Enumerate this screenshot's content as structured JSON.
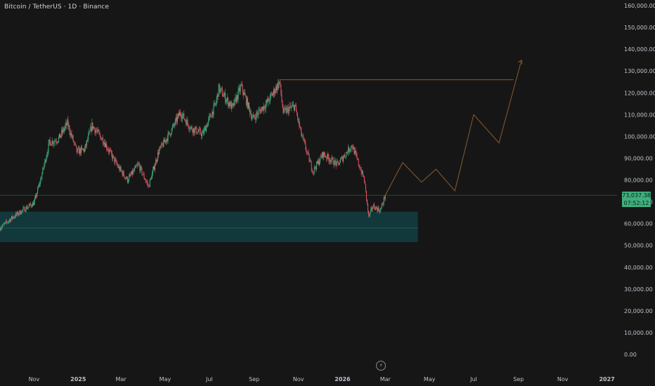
{
  "header": {
    "symbol": "Bitcoin / TetherUS · 1D · Binance"
  },
  "last_price": {
    "price": "73,037.38",
    "countdown": "07:52:12"
  },
  "colors": {
    "background": "#161616",
    "up": "#3fae7e",
    "down": "#e05562",
    "zone_fill": "#123a3d",
    "forecast_line": "#8a5a2e",
    "resistance_line": "#8a5a2e",
    "price_line": "#3fae7e"
  },
  "chart_data": {
    "type": "candlestick",
    "title": "",
    "xlabel": "",
    "ylabel": "",
    "ylim": [
      0,
      160000
    ],
    "yticks": [
      "0.00",
      "10,000.00",
      "20,000.00",
      "30,000.00",
      "40,000.00",
      "50,000.00",
      "60,000.00",
      "70,000.00",
      "80,000.00",
      "90,000.00",
      "100,000.00",
      "110,000.00",
      "120,000.00",
      "130,000.00",
      "140,000.00",
      "150,000.00",
      "160,000.00"
    ],
    "xticks": [
      {
        "label": "Nov",
        "date": "2024-11-01",
        "bold": false
      },
      {
        "label": "2025",
        "date": "2025-01-01",
        "bold": true
      },
      {
        "label": "Mar",
        "date": "2025-03-01",
        "bold": false
      },
      {
        "label": "May",
        "date": "2025-05-01",
        "bold": false
      },
      {
        "label": "Jul",
        "date": "2025-07-01",
        "bold": false
      },
      {
        "label": "Sep",
        "date": "2025-09-01",
        "bold": false
      },
      {
        "label": "Nov",
        "date": "2025-11-01",
        "bold": false
      },
      {
        "label": "2026",
        "date": "2026-01-01",
        "bold": true
      },
      {
        "label": "Mar",
        "date": "2026-03-01",
        "bold": false
      },
      {
        "label": "May",
        "date": "2026-05-01",
        "bold": false
      },
      {
        "label": "Jul",
        "date": "2026-07-01",
        "bold": false
      },
      {
        "label": "Sep",
        "date": "2026-09-01",
        "bold": false
      },
      {
        "label": "Nov",
        "date": "2026-11-01",
        "bold": false
      },
      {
        "label": "2027",
        "date": "2027-01-01",
        "bold": true
      }
    ],
    "x_start": "2024-09-15",
    "price_path": [
      [
        "2024-09-15",
        58000
      ],
      [
        "2024-10-01",
        62500
      ],
      [
        "2024-10-20",
        67000
      ],
      [
        "2024-11-01",
        69500
      ],
      [
        "2024-11-10",
        80000
      ],
      [
        "2024-11-22",
        97000
      ],
      [
        "2024-12-05",
        99000
      ],
      [
        "2024-12-17",
        106000
      ],
      [
        "2024-12-30",
        93000
      ],
      [
        "2025-01-10",
        94000
      ],
      [
        "2025-01-20",
        105000
      ],
      [
        "2025-02-05",
        98000
      ],
      [
        "2025-02-25",
        86000
      ],
      [
        "2025-03-10",
        80000
      ],
      [
        "2025-03-25",
        87000
      ],
      [
        "2025-04-08",
        77000
      ],
      [
        "2025-04-22",
        93000
      ],
      [
        "2025-05-10",
        103000
      ],
      [
        "2025-05-22",
        111000
      ],
      [
        "2025-06-05",
        104000
      ],
      [
        "2025-06-22",
        101000
      ],
      [
        "2025-07-10",
        115000
      ],
      [
        "2025-07-14",
        122000
      ],
      [
        "2025-08-02",
        113000
      ],
      [
        "2025-08-14",
        123000
      ],
      [
        "2025-08-30",
        108000
      ],
      [
        "2025-09-20",
        116000
      ],
      [
        "2025-10-06",
        125000
      ],
      [
        "2025-10-11",
        111000
      ],
      [
        "2025-10-27",
        114000
      ],
      [
        "2025-11-05",
        101000
      ],
      [
        "2025-11-21",
        84000
      ],
      [
        "2025-12-05",
        92000
      ],
      [
        "2025-12-25",
        87000
      ],
      [
        "2026-01-14",
        96000
      ],
      [
        "2026-01-31",
        80000
      ],
      [
        "2026-02-06",
        63000
      ],
      [
        "2026-02-12",
        68000
      ],
      [
        "2026-02-22",
        66000
      ],
      [
        "2026-03-01",
        73037
      ]
    ],
    "last_price": 73037.38,
    "demand_zone": {
      "x_from": "2024-09-15",
      "x_to": "2026-04-15",
      "y_from": 51500,
      "y_to": 65500
    },
    "resistance_level": {
      "y": 126000,
      "x_from": "2025-10-06",
      "x_to": "2026-08-25"
    },
    "forecast_path": [
      [
        "2026-03-01",
        73037
      ],
      [
        "2026-03-25",
        88000
      ],
      [
        "2026-04-20",
        79000
      ],
      [
        "2026-05-10",
        85000
      ],
      [
        "2026-06-05",
        75000
      ],
      [
        "2026-07-01",
        110000
      ],
      [
        "2026-08-05",
        97000
      ],
      [
        "2026-09-05",
        135000
      ]
    ]
  }
}
